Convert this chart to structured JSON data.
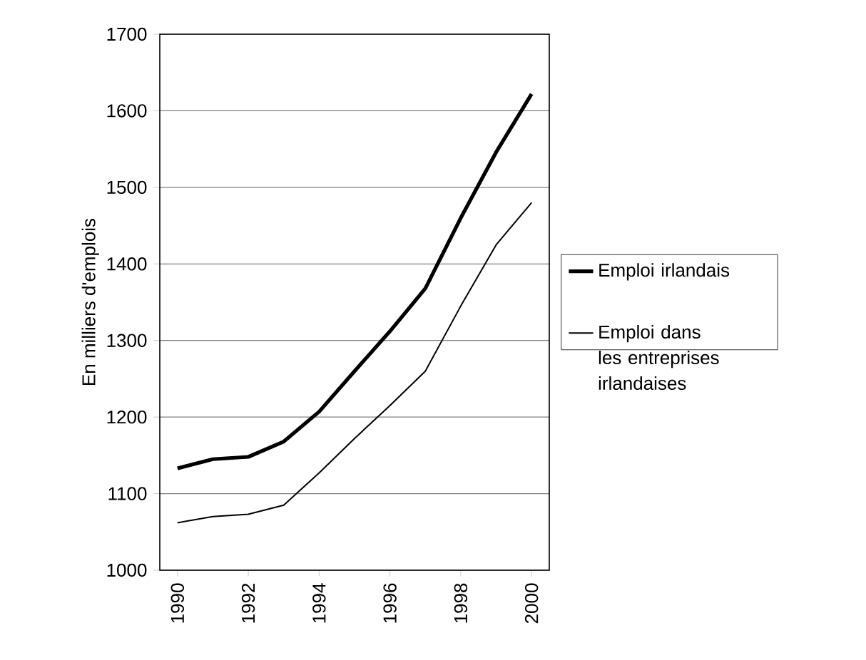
{
  "chart_data": {
    "type": "line",
    "ylabel": "En milliers d'emplois",
    "x": [
      1990,
      1991,
      1992,
      1993,
      1994,
      1995,
      1996,
      1997,
      1998,
      1999,
      2000
    ],
    "xlim": [
      1989.5,
      2000.5
    ],
    "xticks": [
      1990,
      1992,
      1994,
      1996,
      1998,
      2000
    ],
    "ylim": [
      1000,
      1700
    ],
    "yticks": [
      1000,
      1100,
      1200,
      1300,
      1400,
      1500,
      1600,
      1700
    ],
    "grid": "y",
    "legend": "right",
    "marker": "none",
    "line_style": "solid",
    "series": [
      {
        "name": "Emploi irlandais",
        "color": "#000000",
        "values": [
          1133,
          1145,
          1148,
          1168,
          1207,
          1260,
          1312,
          1368,
          1460,
          1546,
          1622
        ]
      },
      {
        "name": "Emploi dans les entreprises irlandaises",
        "color": "#000000",
        "values": [
          1062,
          1070,
          1073,
          1085,
          1127,
          1172,
          1215,
          1260,
          1345,
          1425,
          1480
        ]
      }
    ]
  }
}
